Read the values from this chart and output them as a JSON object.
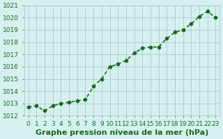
{
  "x": [
    0,
    1,
    2,
    3,
    4,
    5,
    6,
    7,
    8,
    9,
    10,
    11,
    12,
    13,
    14,
    15,
    16,
    17,
    18,
    19,
    20,
    21,
    22,
    23
  ],
  "y": [
    1012.7,
    1012.8,
    1012.4,
    1012.8,
    1013.0,
    1013.1,
    1013.2,
    1013.3,
    1014.4,
    1015.0,
    1016.0,
    1016.2,
    1016.5,
    1017.1,
    1017.5,
    1017.6,
    1017.6,
    1018.3,
    1018.8,
    1019.0,
    1019.5,
    1020.1,
    1020.5,
    1020.0
  ],
  "ylim": [
    1012,
    1021
  ],
  "yticks": [
    1012,
    1013,
    1014,
    1015,
    1016,
    1017,
    1018,
    1019,
    1020,
    1021
  ],
  "xticks": [
    0,
    1,
    2,
    3,
    4,
    5,
    6,
    7,
    8,
    9,
    10,
    11,
    12,
    13,
    14,
    15,
    16,
    17,
    18,
    19,
    20,
    21,
    22,
    23
  ],
  "line_color": "#1a6b1a",
  "marker_color": "#1a6b1a",
  "bg_color": "#d6f0f0",
  "grid_color": "#b0cece",
  "xlabel": "Graphe pression niveau de la mer (hPa)",
  "xlabel_fontsize": 8,
  "tick_fontsize": 6.5,
  "ylabel_fontsize": 7,
  "line_width": 1.2,
  "marker_size": 3
}
